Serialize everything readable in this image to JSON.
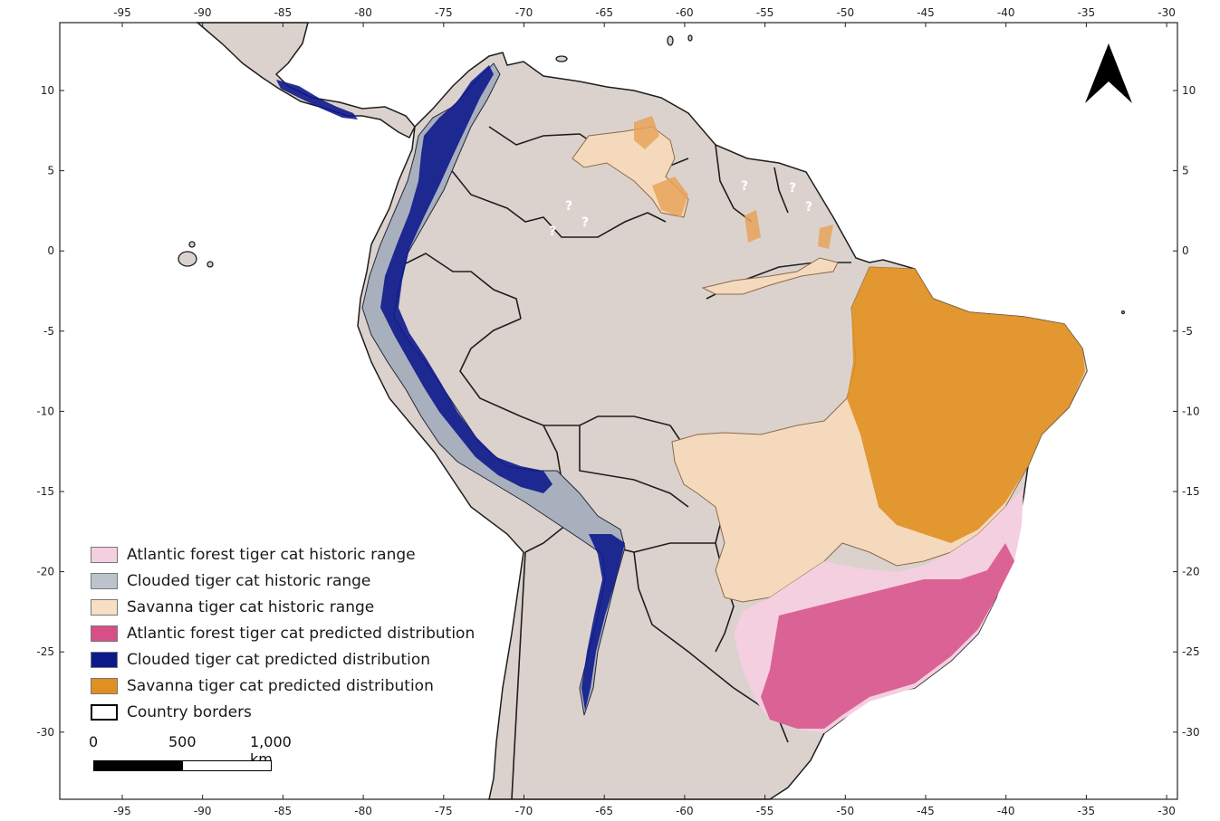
{
  "map": {
    "x_ticks": [
      "-95",
      "-90",
      "-85",
      "-80",
      "-75",
      "-70",
      "-65",
      "-60",
      "-55",
      "-50",
      "-45",
      "-40",
      "-35",
      "-30"
    ],
    "y_ticks": [
      "10",
      "5",
      "0",
      "-5",
      "-10",
      "-15",
      "-20",
      "-25",
      "-30"
    ],
    "uncertain_marker": "?",
    "colors": {
      "land": "#dcd2cd",
      "sea": "#ffffff",
      "border": "#1e1e1e",
      "atlantic_historic": "#f3cfe0",
      "clouded_historic": "#a9b0bd",
      "savanna_historic": "#f5d9bd",
      "atlantic_predicted": "#d64f86",
      "clouded_predicted": "#0d1a8c",
      "savanna_predicted": "#e08f21"
    }
  },
  "legend": [
    {
      "label": "Atlantic forest tiger cat historic range",
      "color": "#f3cfe0"
    },
    {
      "label": "Clouded tiger cat historic range",
      "color": "#bcc3cd"
    },
    {
      "label": "Savanna tiger cat historic range",
      "color": "#f7dfc6"
    },
    {
      "label": "Atlantic forest tiger cat predicted distribution",
      "color": "#d64f86"
    },
    {
      "label": "Clouded tiger cat predicted distribution",
      "color": "#0d1a8c"
    },
    {
      "label": "Savanna tiger cat predicted distribution",
      "color": "#e08f21"
    },
    {
      "label": "Country borders",
      "color": "#ffffff"
    }
  ],
  "scale_bar": {
    "labels": [
      "0",
      "500",
      "1,000 km"
    ]
  },
  "north_arrow": {
    "icon": "north-arrow-icon"
  }
}
